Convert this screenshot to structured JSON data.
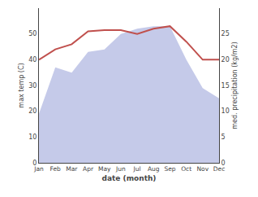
{
  "chart_data": {
    "type": "line",
    "categories": [
      "Jan",
      "Feb",
      "Mar",
      "Apr",
      "May",
      "Jun",
      "Jul",
      "Aug",
      "Sep",
      "Oct",
      "Nov",
      "Dec"
    ],
    "series": [
      {
        "type": "area",
        "axis": "y2",
        "color": "#c5cae9",
        "values": [
          9.5,
          18.5,
          17.5,
          21.5,
          22,
          25,
          26,
          26.5,
          26.5,
          20,
          14.5,
          12.5
        ]
      },
      {
        "type": "line",
        "color": "#c0504d",
        "values": [
          40,
          44,
          46,
          51,
          51.5,
          51.5,
          50,
          52,
          53,
          47,
          40,
          40
        ]
      }
    ],
    "xlabel": "date (month)",
    "ylabel": "max temp (C)",
    "y2label": "med. precipitation (kg/m2)",
    "ylim": [
      0,
      60
    ],
    "yticks": [
      0,
      10,
      20,
      30,
      40,
      50
    ],
    "y2lim": [
      0,
      30
    ],
    "y2ticks": [
      0,
      5,
      10,
      15,
      20,
      25
    ],
    "grid": false
  }
}
